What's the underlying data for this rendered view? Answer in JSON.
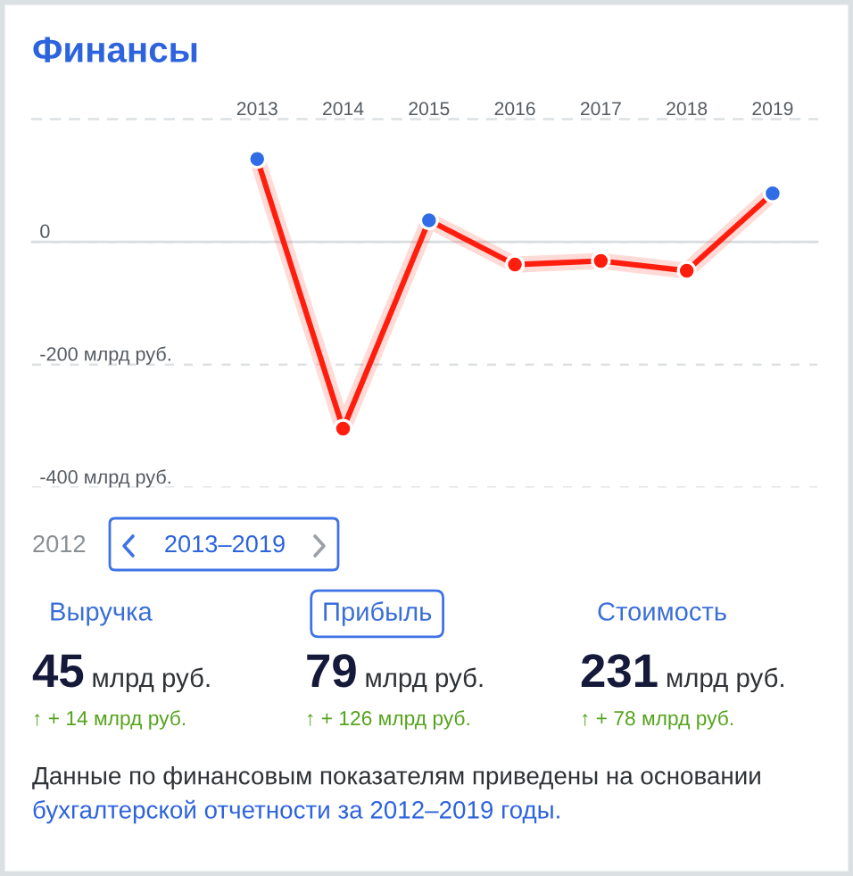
{
  "chart_data": [
    {
      "type": "line",
      "title": "Финансы",
      "categories": [
        "2013",
        "2014",
        "2015",
        "2016",
        "2017",
        "2018",
        "2019"
      ],
      "series": [
        {
          "color": "#ff1e0e",
          "colors": [
            "#2f6ce5",
            "#ff1e0e",
            "#2f6ce5",
            "#ff1e0e",
            "#ff1e0e",
            "#ff1e0e",
            "#2f6ce5"
          ],
          "values": [
            135,
            -304,
            35,
            -37,
            -31,
            -47,
            79
          ]
        }
      ],
      "ylim": [
        -400,
        200
      ],
      "yticks": [
        {
          "value": -400,
          "label": "-400 млрд руб."
        },
        {
          "value": -200,
          "label": "-200 млрд руб."
        },
        0
      ],
      "grid": "y",
      "marker": "circle",
      "line_style": "solid"
    },
    {
      "type": "other",
      "categories": [
        "Выручка",
        "Прибыль",
        "Стоимость"
      ],
      "values": [
        45,
        79,
        231
      ],
      "data_labels": true,
      "annotations": [
        "2012",
        "2013–2019",
        "млрд руб.",
        "млрд руб.",
        "млрд руб.",
        "↑ + 14 млрд руб.",
        "↑ + 126 млрд руб.",
        "↑ + 78 млрд руб.",
        "Данные по финансовым показателям приведены на основании",
        "бухгалтерской отчетности за 2012–2019 годы."
      ]
    }
  ]
}
